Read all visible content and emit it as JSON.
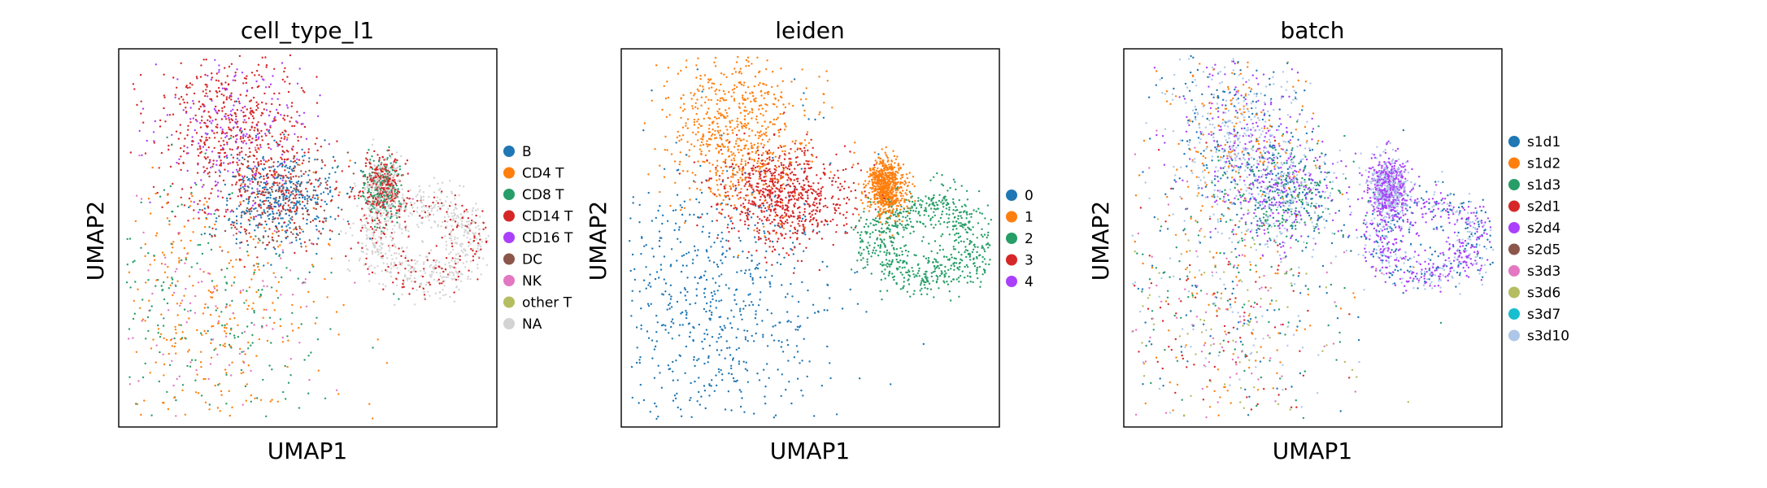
{
  "chart_data": [
    {
      "type": "scatter",
      "title": "cell_type_l1",
      "xlabel": "UMAP1",
      "ylabel": "UMAP2",
      "legend_position": "right",
      "grid": false,
      "categories": [
        {
          "name": "B",
          "color": "#1f77b4"
        },
        {
          "name": "CD4 T",
          "color": "#ff7f0e"
        },
        {
          "name": "CD8 T",
          "color": "#279e68"
        },
        {
          "name": "CD14 T",
          "color": "#d62728"
        },
        {
          "name": "CD16 T",
          "color": "#aa40fc"
        },
        {
          "name": "DC",
          "color": "#8c564b"
        },
        {
          "name": "NK",
          "color": "#e377c2"
        },
        {
          "name": "other T",
          "color": "#b5bd61"
        },
        {
          "name": "NA",
          "color": "#d3d3d3"
        }
      ]
    },
    {
      "type": "scatter",
      "title": "leiden",
      "xlabel": "UMAP1",
      "ylabel": "UMAP2",
      "legend_position": "right",
      "grid": false,
      "categories": [
        {
          "name": "0",
          "color": "#1f77b4"
        },
        {
          "name": "1",
          "color": "#ff7f0e"
        },
        {
          "name": "2",
          "color": "#279e68"
        },
        {
          "name": "3",
          "color": "#d62728"
        },
        {
          "name": "4",
          "color": "#aa40fc"
        }
      ]
    },
    {
      "type": "scatter",
      "title": "batch",
      "xlabel": "UMAP1",
      "ylabel": "UMAP2",
      "legend_position": "right",
      "grid": false,
      "categories": [
        {
          "name": "s1d1",
          "color": "#1f77b4"
        },
        {
          "name": "s1d2",
          "color": "#ff7f0e"
        },
        {
          "name": "s1d3",
          "color": "#279e68"
        },
        {
          "name": "s2d1",
          "color": "#d62728"
        },
        {
          "name": "s2d4",
          "color": "#aa40fc"
        },
        {
          "name": "s2d5",
          "color": "#8c564b"
        },
        {
          "name": "s3d3",
          "color": "#e377c2"
        },
        {
          "name": "s3d6",
          "color": "#b5bd61"
        },
        {
          "name": "s3d7",
          "color": "#17becf"
        },
        {
          "name": "s3d10",
          "color": "#aec7e8"
        }
      ]
    }
  ]
}
